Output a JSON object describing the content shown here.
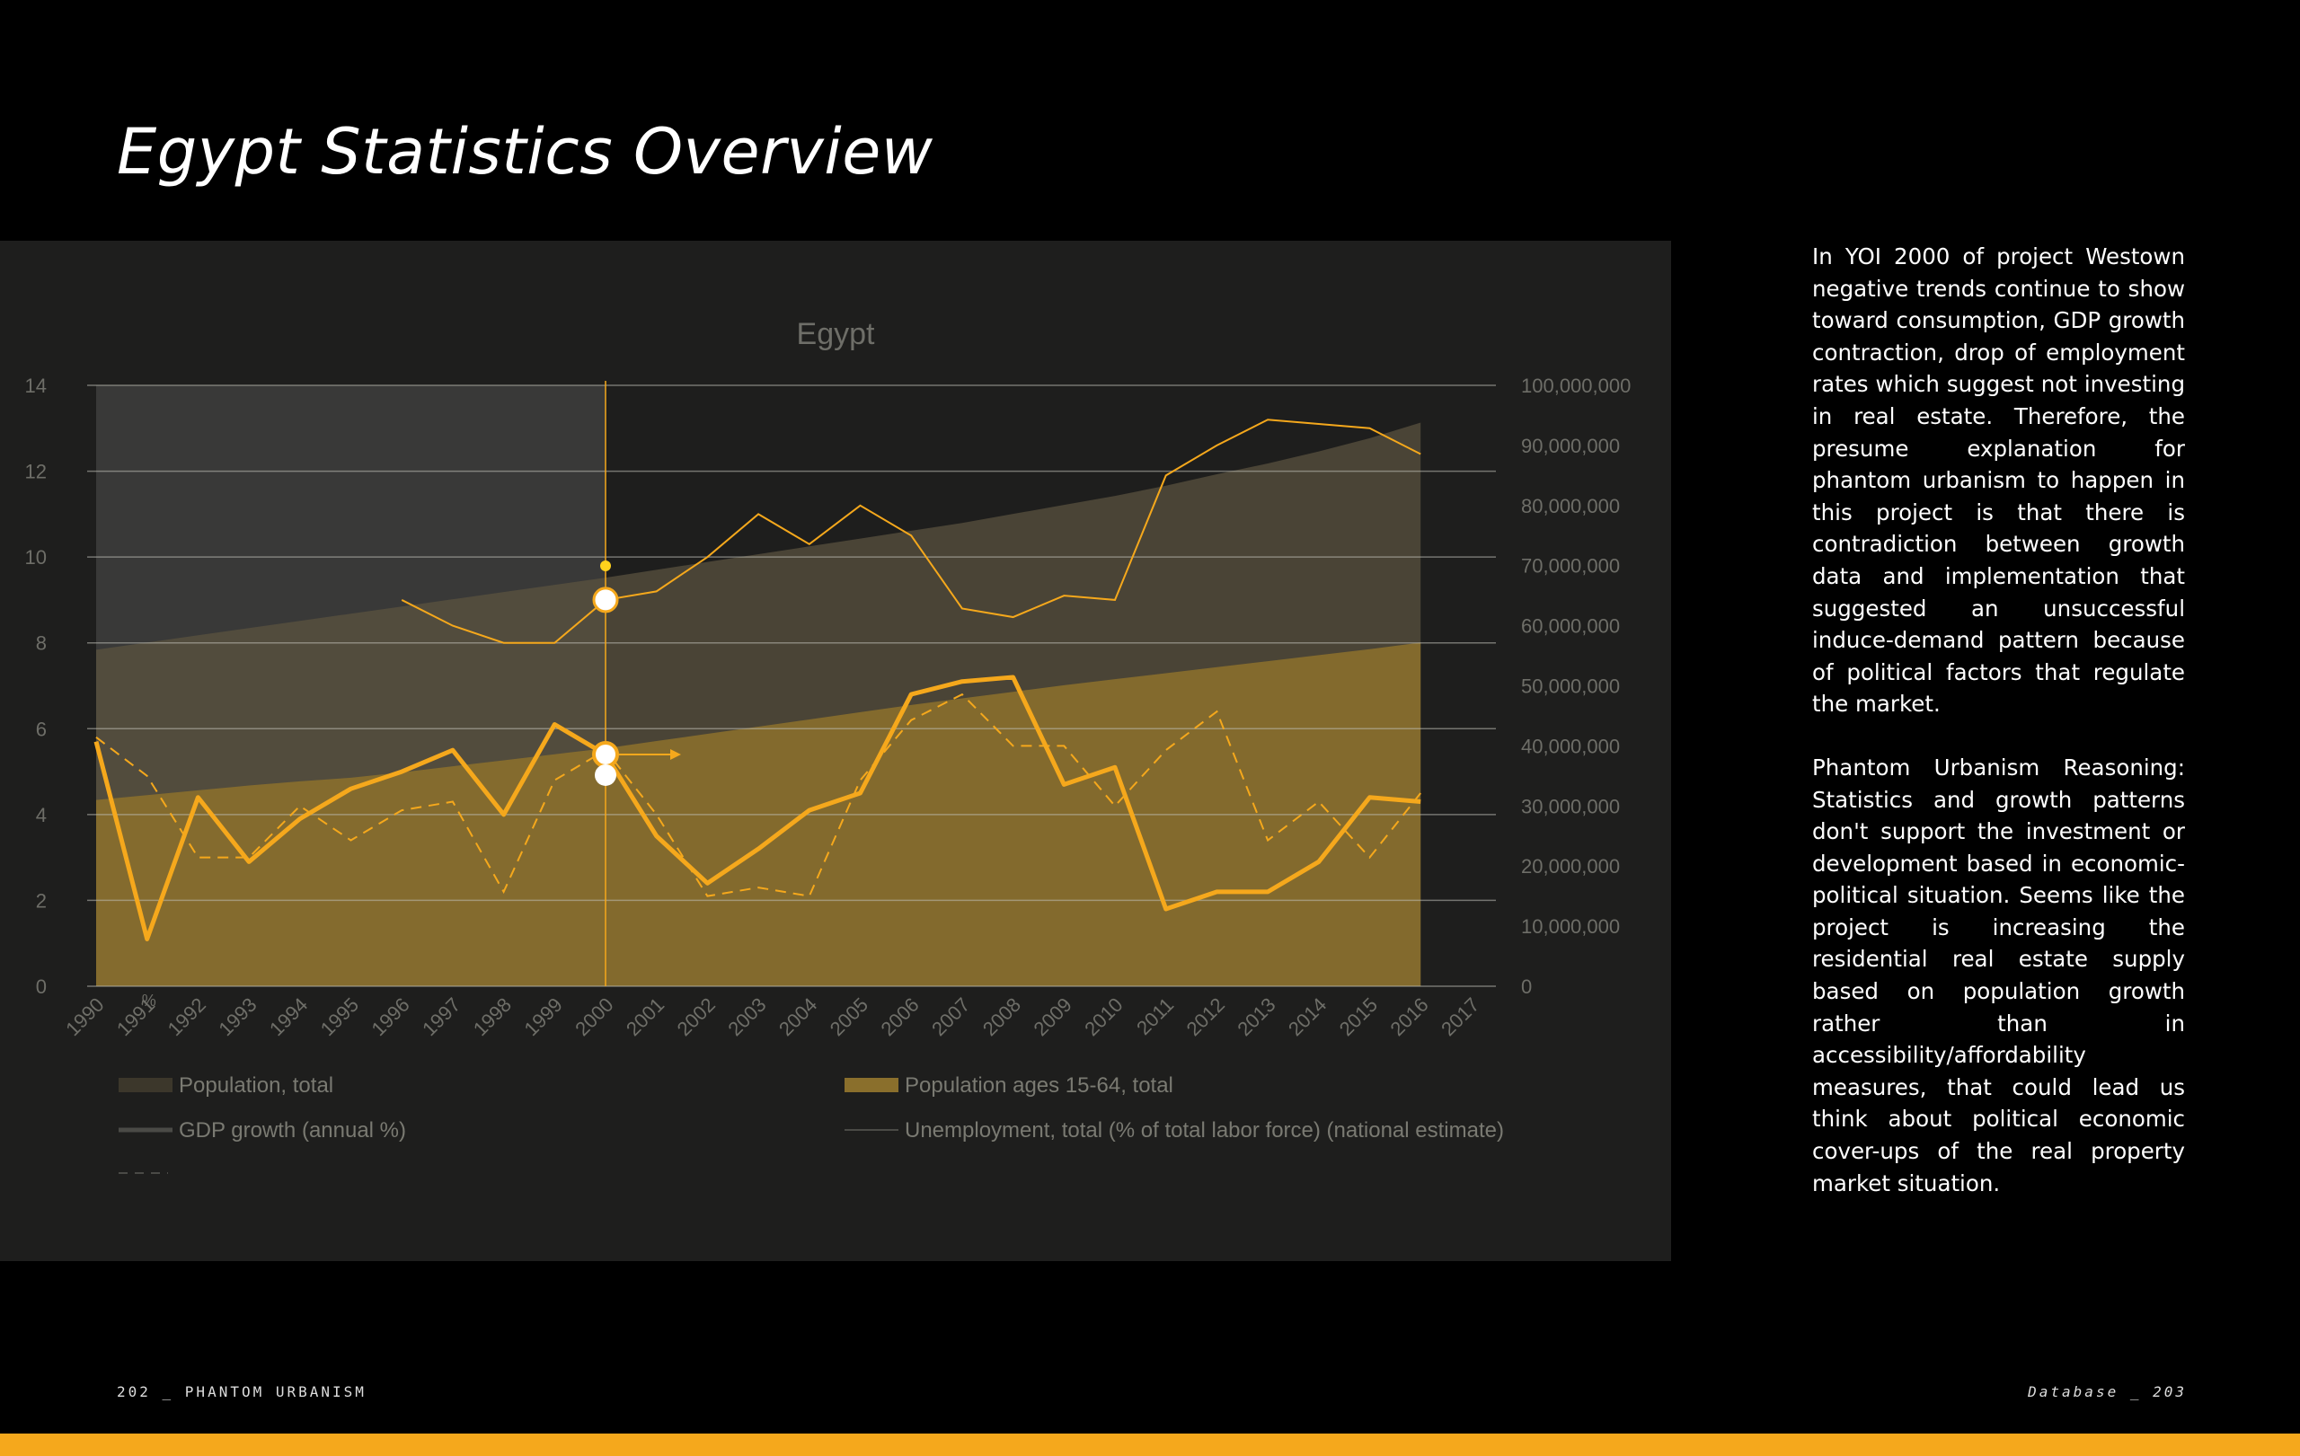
{
  "page": {
    "title": "Egypt Statistics Overview",
    "footer_left": "202 _ PHANTOM URBANISM",
    "footer_right": "Database _ 203",
    "accent_color": "#f5a81c"
  },
  "side_text": {
    "paragraph_1": "In YOI 2000 of project Westown negative trends continue to show toward consumption, GDP growth contraction, drop of employment rates which suggest not investing in real estate. Therefore, the presume explanation for phantom urbanism to happen in this project is that there is contradiction between growth data and implementation that suggested an unsuccessful induce-demand pattern because of political factors that regulate the market.",
    "paragraph_2": "Phantom Urbanism Reasoning: Statistics and growth patterns don't support the investment or development based in economic-political situation. Seems like the project is increasing the residential real estate supply based on population growth rather than in accessibility/affordability measures, that could lead us think about political economic cover-ups of the real property market situation."
  },
  "chart_data": {
    "type": "area+line",
    "title": "Egypt",
    "categories": [
      "1990",
      "1991",
      "1992",
      "1993",
      "1994",
      "1995",
      "1996",
      "1997",
      "1998",
      "1999",
      "2000",
      "2001",
      "2002",
      "2003",
      "2004",
      "2005",
      "2006",
      "2007",
      "2008",
      "2009",
      "2010",
      "2011",
      "2012",
      "2013",
      "2014",
      "2015",
      "2016",
      "2017"
    ],
    "left_axis": {
      "min": 0,
      "max": 14,
      "ticks": [
        "0",
        "2",
        "4",
        "6",
        "8",
        "10",
        "12",
        "14"
      ]
    },
    "right_axis": {
      "min": 0,
      "max": 100000000,
      "ticks": [
        "0",
        "10,000,000",
        "20,000,000",
        "30,000,000",
        "40,000,000",
        "50,000,000",
        "60,000,000",
        "70,000,000",
        "80,000,000",
        "90,000,000",
        "100,000,000"
      ]
    },
    "highlight_year": "2000",
    "annotation_mark": "%",
    "series": [
      {
        "name": "Population, total",
        "kind": "area",
        "axis": "right",
        "color": "#5c5340",
        "values": [
          56000000,
          57200000,
          58400000,
          59600000,
          60800000,
          62000000,
          63200000,
          64400000,
          65600000,
          66800000,
          68000000,
          69300000,
          70600000,
          71900000,
          73200000,
          74500000,
          75800000,
          77100000,
          78600000,
          80100000,
          81600000,
          83300000,
          85200000,
          87000000,
          89000000,
          91200000,
          93800000,
          null
        ]
      },
      {
        "name": "Population ages 15-64, total",
        "kind": "area",
        "axis": "right",
        "color": "#8a6f2c",
        "values": [
          31000000,
          31800000,
          32600000,
          33400000,
          34100000,
          34700000,
          35600000,
          36600000,
          37600000,
          38600000,
          39600000,
          40800000,
          42000000,
          43200000,
          44400000,
          45600000,
          46800000,
          47900000,
          49000000,
          50100000,
          51100000,
          52100000,
          53100000,
          54100000,
          55100000,
          56100000,
          57200000,
          null
        ]
      },
      {
        "name": "GDP growth (annual %)",
        "kind": "line",
        "axis": "left",
        "color": "#f5a81c",
        "values": [
          5.7,
          1.1,
          4.4,
          2.9,
          3.9,
          4.6,
          5.0,
          5.5,
          4.0,
          6.1,
          5.4,
          3.5,
          2.4,
          3.2,
          4.1,
          4.5,
          6.8,
          7.1,
          7.2,
          4.7,
          5.1,
          1.8,
          2.2,
          2.2,
          2.9,
          4.4,
          4.3,
          null
        ]
      },
      {
        "name": "Unemployment, total (% of total labor force) (national estimate)",
        "kind": "line",
        "axis": "left",
        "color": "#f5a81c",
        "values": [
          null,
          null,
          null,
          null,
          null,
          null,
          9.0,
          8.4,
          8.0,
          8.0,
          9.0,
          9.2,
          10.0,
          11.0,
          10.3,
          11.2,
          10.5,
          8.8,
          8.6,
          9.1,
          9.0,
          11.9,
          12.6,
          13.2,
          13.1,
          13.0,
          12.4,
          null
        ]
      },
      {
        "name": "",
        "kind": "dashed",
        "axis": "left",
        "color": "#f5a81c",
        "values": [
          5.8,
          4.9,
          3.0,
          3.0,
          4.2,
          3.4,
          4.1,
          4.3,
          2.2,
          4.8,
          5.5,
          4.0,
          2.1,
          2.3,
          2.1,
          4.8,
          6.2,
          6.8,
          5.6,
          5.6,
          4.2,
          5.5,
          6.4,
          3.4,
          4.3,
          3.0,
          4.5,
          null
        ]
      }
    ],
    "legend": [
      {
        "label": "Population, total",
        "kind": "area"
      },
      {
        "label": "Population ages 15-64, total",
        "kind": "area"
      },
      {
        "label": "GDP growth (annual %)",
        "kind": "line"
      },
      {
        "label": "Unemployment, total (% of total labor force) (national estimate)",
        "kind": "line"
      },
      {
        "label": "",
        "kind": "dashed"
      }
    ]
  }
}
